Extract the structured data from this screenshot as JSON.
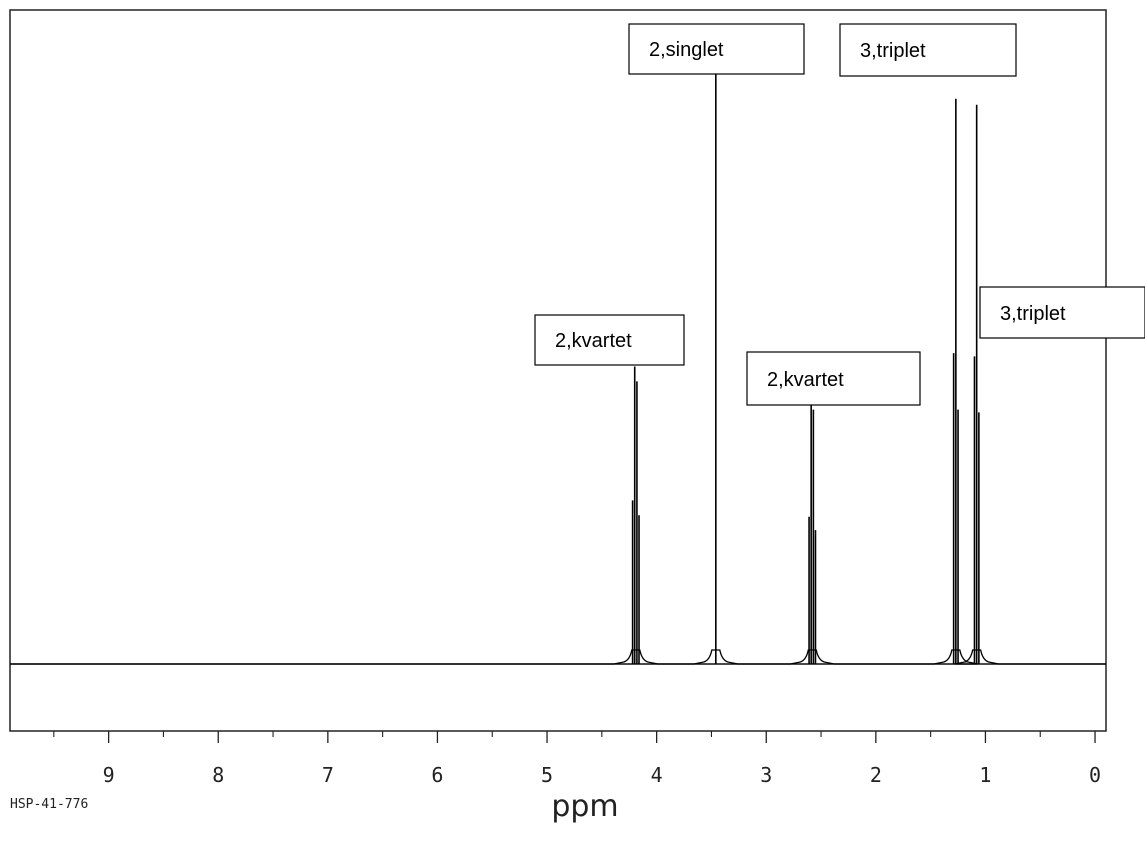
{
  "chart_data": {
    "type": "line",
    "title": "",
    "xlabel": "ppm",
    "ylabel": "",
    "x_reversed": true,
    "xlim": [
      9.9,
      -0.1
    ],
    "ticks": [
      {
        "value": 9,
        "label": "9"
      },
      {
        "value": 8,
        "label": "8"
      },
      {
        "value": 7,
        "label": "7"
      },
      {
        "value": 6,
        "label": "6"
      },
      {
        "value": 5,
        "label": "5"
      },
      {
        "value": 4,
        "label": "4"
      },
      {
        "value": 3,
        "label": "3"
      },
      {
        "value": 2,
        "label": "2"
      },
      {
        "value": 1,
        "label": "1"
      },
      {
        "value": 0,
        "label": "0"
      }
    ],
    "minor_tick_values": [
      9.5,
      8.5,
      7.5,
      6.5,
      5.5,
      4.5,
      3.5,
      2.5,
      1.5,
      0.5
    ],
    "code": "HSP-41-776",
    "peaks": [
      {
        "ppm": 4.19,
        "mult": "quartet",
        "height": 0.5,
        "annotation": "2,kvartet"
      },
      {
        "ppm": 3.46,
        "mult": "singlet",
        "height": 1.0,
        "annotation": "2,singlet"
      },
      {
        "ppm": 2.58,
        "mult": "quartet",
        "height": 0.45,
        "annotation": "2,kvartet"
      },
      {
        "ppm": 1.27,
        "mult": "triplet",
        "height": 0.95,
        "annotation": "3,triplet"
      },
      {
        "ppm": 1.08,
        "mult": "triplet",
        "height": 0.94,
        "annotation": "3,triplet"
      }
    ]
  }
}
